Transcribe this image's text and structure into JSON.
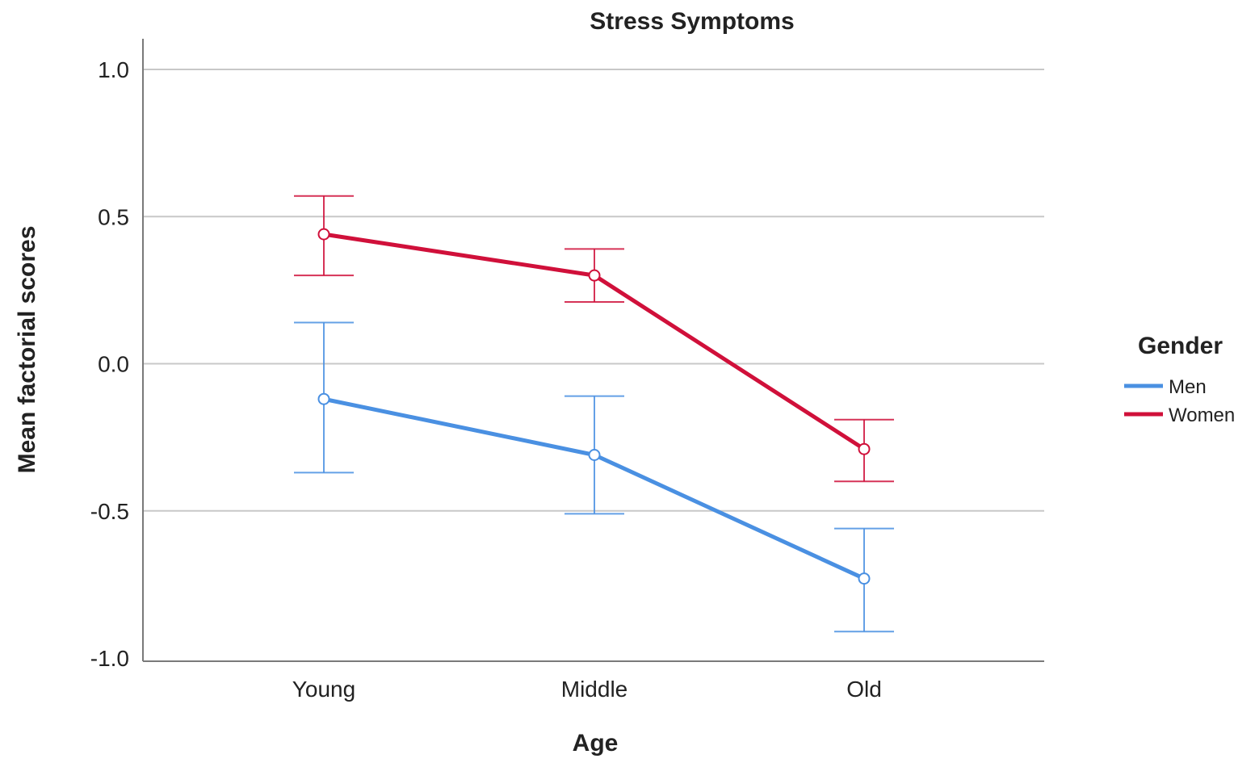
{
  "chart_data": {
    "type": "line",
    "title": "Stress Symptoms",
    "xlabel": "Age",
    "ylabel": "Mean factorial scores",
    "categories": [
      "Young",
      "Middle",
      "Old"
    ],
    "ylim": [
      -1.0,
      1.1
    ],
    "yticks": [
      1.0,
      0.5,
      0.0,
      -0.5,
      -1.0
    ],
    "ytick_labels": [
      "1.0",
      "0.5",
      "0.0",
      "-0.5",
      "-1.0"
    ],
    "grid": true,
    "legend": {
      "title": "Gender",
      "position": "right"
    },
    "series": [
      {
        "name": "Men",
        "color": "#4a90e2",
        "values": [
          -0.12,
          -0.31,
          -0.73
        ],
        "error_low": [
          -0.37,
          -0.51,
          -0.91
        ],
        "error_high": [
          0.14,
          -0.11,
          -0.56
        ]
      },
      {
        "name": "Women",
        "color": "#d0103a",
        "values": [
          0.44,
          0.3,
          -0.29
        ],
        "error_low": [
          0.3,
          0.21,
          -0.4
        ],
        "error_high": [
          0.57,
          0.39,
          -0.19
        ]
      }
    ]
  }
}
